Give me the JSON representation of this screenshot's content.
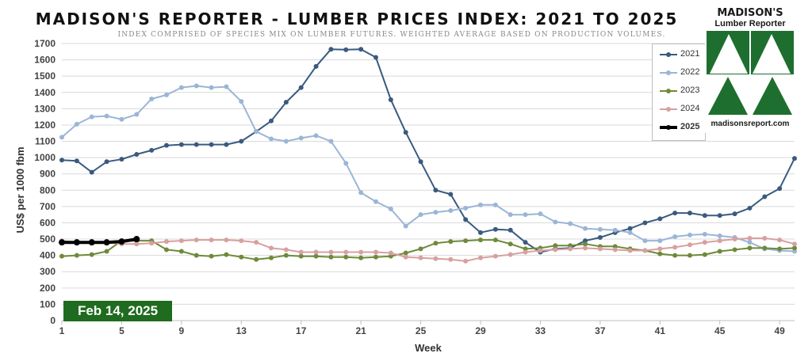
{
  "header": {
    "title": "MADISON'S REPORTER - LUMBER PRICES INDEX: 2021 TO 2025",
    "subtitle": "INDEX COMPRISED OF SPECIES MIX ON LUMBER FUTURES. WEIGHTED AVERAGE BASED ON PRODUCTION VOLUMES."
  },
  "logo": {
    "name": "MADISON'S",
    "subname": "Lumber Reporter",
    "url": "madisonsreport.com",
    "color": "#1e6f2f"
  },
  "date_label": "Feb 14, 2025",
  "chart_data": {
    "type": "line",
    "title": "MADISON'S REPORTER - LUMBER PRICES INDEX: 2021 TO 2025",
    "xlabel": "Week",
    "ylabel": "US$ per 1000 fbm",
    "xlim": [
      1,
      50
    ],
    "ylim": [
      0,
      1700
    ],
    "xticks": [
      1,
      5,
      9,
      13,
      17,
      21,
      25,
      29,
      33,
      37,
      41,
      45,
      49
    ],
    "yticks": [
      0,
      100,
      200,
      300,
      400,
      500,
      600,
      700,
      800,
      900,
      1000,
      1100,
      1200,
      1300,
      1400,
      1500,
      1600,
      1700
    ],
    "grid": "horizontal",
    "legend_position": "top-right",
    "series": [
      {
        "name": "2021",
        "color": "#3a5a7f",
        "width": 2,
        "values": [
          985,
          980,
          910,
          975,
          990,
          1020,
          1045,
          1075,
          1080,
          1080,
          1080,
          1080,
          1100,
          1160,
          1225,
          1340,
          1430,
          1560,
          1665,
          1662,
          1665,
          1615,
          1355,
          1155,
          975,
          800,
          775,
          620,
          540,
          560,
          555,
          480,
          420,
          440,
          445,
          490,
          510,
          540,
          565,
          600,
          625,
          660,
          660,
          645,
          645,
          655,
          690,
          760,
          810,
          995
        ]
      },
      {
        "name": "2022",
        "color": "#9bb5d6",
        "width": 2,
        "values": [
          1125,
          1205,
          1250,
          1255,
          1235,
          1265,
          1360,
          1385,
          1430,
          1440,
          1430,
          1435,
          1345,
          1160,
          1115,
          1100,
          1120,
          1135,
          1100,
          965,
          785,
          730,
          685,
          580,
          650,
          665,
          675,
          690,
          710,
          710,
          650,
          650,
          655,
          605,
          595,
          565,
          560,
          555,
          540,
          490,
          490,
          515,
          525,
          530,
          520,
          510,
          480,
          440,
          430,
          425
        ]
      },
      {
        "name": "2023",
        "color": "#6e8a3a",
        "width": 2,
        "values": [
          395,
          400,
          405,
          425,
          490,
          490,
          490,
          435,
          425,
          400,
          395,
          405,
          390,
          375,
          385,
          400,
          395,
          395,
          390,
          390,
          385,
          390,
          395,
          415,
          440,
          475,
          485,
          490,
          495,
          495,
          470,
          440,
          445,
          460,
          460,
          470,
          455,
          455,
          440,
          430,
          410,
          400,
          400,
          405,
          425,
          435,
          445,
          445,
          440,
          445
        ]
      },
      {
        "name": "2024",
        "color": "#d8a0a0",
        "width": 2,
        "values": [
          490,
          480,
          480,
          480,
          470,
          470,
          475,
          485,
          490,
          495,
          495,
          495,
          490,
          480,
          445,
          435,
          420,
          420,
          420,
          420,
          420,
          420,
          415,
          390,
          385,
          380,
          375,
          365,
          385,
          395,
          405,
          420,
          430,
          435,
          440,
          445,
          440,
          435,
          430,
          430,
          440,
          450,
          465,
          480,
          490,
          500,
          505,
          505,
          495,
          470
        ]
      },
      {
        "name": "2025",
        "color": "#000000",
        "width": 4,
        "values": [
          480,
          480,
          480,
          480,
          485,
          500
        ]
      }
    ]
  }
}
